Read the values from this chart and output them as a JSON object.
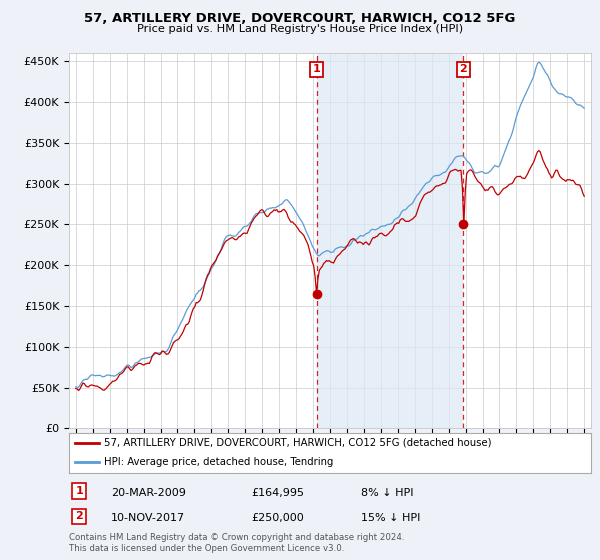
{
  "title": "57, ARTILLERY DRIVE, DOVERCOURT, HARWICH, CO12 5FG",
  "subtitle": "Price paid vs. HM Land Registry's House Price Index (HPI)",
  "ylim": [
    0,
    460000
  ],
  "yticks": [
    0,
    50000,
    100000,
    150000,
    200000,
    250000,
    300000,
    350000,
    400000,
    450000
  ],
  "ytick_labels": [
    "£0",
    "£50K",
    "£100K",
    "£150K",
    "£200K",
    "£250K",
    "£300K",
    "£350K",
    "£400K",
    "£450K"
  ],
  "hpi_color": "#5b9bd5",
  "price_color": "#c00000",
  "sale1_year": 2009.22,
  "sale1_price": 164995,
  "sale2_year": 2017.87,
  "sale2_price": 250000,
  "sale1": {
    "date": "20-MAR-2009",
    "price": "£164,995",
    "pct": "8% ↓ HPI"
  },
  "sale2": {
    "date": "10-NOV-2017",
    "price": "£250,000",
    "pct": "15% ↓ HPI"
  },
  "legend_label1": "57, ARTILLERY DRIVE, DOVERCOURT, HARWICH, CO12 5FG (detached house)",
  "legend_label2": "HPI: Average price, detached house, Tendring",
  "footer": "Contains HM Land Registry data © Crown copyright and database right 2024.\nThis data is licensed under the Open Government Licence v3.0.",
  "bg_color": "#eef2f8",
  "plot_bg": "#ffffff",
  "shade_color": "#dce8f5",
  "grid_color": "#cccccc"
}
